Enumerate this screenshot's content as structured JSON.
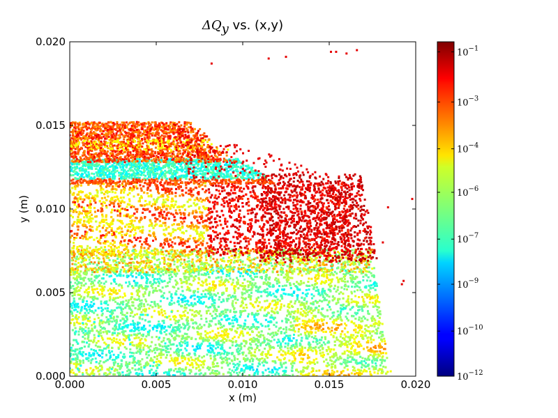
{
  "chart_data": {
    "type": "scatter",
    "title_math": "ΔQ",
    "title_sub": "y",
    "title_rest": " vs. (x,y)",
    "xlabel": "x (m)",
    "ylabel": "y (m)",
    "xlim": [
      0.0,
      0.02
    ],
    "ylim": [
      0.0,
      0.02
    ],
    "x_ticks": [
      0.0,
      0.005,
      0.01,
      0.015,
      0.02
    ],
    "x_tick_labels": [
      "0.000",
      "0.005",
      "0.010",
      "0.015",
      "0.020"
    ],
    "y_ticks": [
      0.0,
      0.005,
      0.01,
      0.015,
      0.02
    ],
    "y_tick_labels": [
      "0.000",
      "0.005",
      "0.010",
      "0.015",
      "0.020"
    ],
    "grid": false,
    "colormap": "jet",
    "colorbar": {
      "scale": "log",
      "ticks": [
        {
          "base": "10",
          "exp": "−1",
          "frac": 0.97
        },
        {
          "base": "10",
          "exp": "−3",
          "frac": 0.82
        },
        {
          "base": "10",
          "exp": "−4",
          "frac": 0.68
        },
        {
          "base": "10",
          "exp": "−6",
          "frac": 0.55
        },
        {
          "base": "10",
          "exp": "−7",
          "frac": 0.41
        },
        {
          "base": "10",
          "exp": "−9",
          "frac": 0.275
        },
        {
          "base": "10",
          "exp": "−10",
          "frac": 0.135
        },
        {
          "base": "10",
          "exp": "−12",
          "frac": 0.0
        }
      ]
    },
    "regions": [
      {
        "name": "core",
        "x": [
          0.0,
          0.0185
        ],
        "y": [
          0.0,
          0.0065
        ],
        "level_range": [
          0.35,
          0.75
        ]
      },
      {
        "name": "middle-band",
        "x": [
          0.0,
          0.017
        ],
        "y": [
          0.0075,
          0.0115
        ],
        "level_range": [
          0.65,
          0.95
        ]
      },
      {
        "name": "upper-cyan-band",
        "x": [
          0.0,
          0.011
        ],
        "y": [
          0.012,
          0.0128
        ],
        "level_range": [
          0.3,
          0.5
        ]
      },
      {
        "name": "upper-band",
        "x": [
          0.0,
          0.008
        ],
        "y": [
          0.013,
          0.0152
        ],
        "level_range": [
          0.7,
          0.98
        ]
      }
    ],
    "outliers": [
      {
        "x": 0.0082,
        "y": 0.0187
      },
      {
        "x": 0.0115,
        "y": 0.019
      },
      {
        "x": 0.0125,
        "y": 0.0191
      },
      {
        "x": 0.0151,
        "y": 0.0194
      },
      {
        "x": 0.0154,
        "y": 0.0194
      },
      {
        "x": 0.016,
        "y": 0.0193
      },
      {
        "x": 0.0166,
        "y": 0.0195
      },
      {
        "x": 0.0198,
        "y": 0.0106
      },
      {
        "x": 0.0193,
        "y": 0.0057
      },
      {
        "x": 0.0192,
        "y": 0.0055
      },
      {
        "x": 0.0181,
        "y": 0.008
      },
      {
        "x": 0.0184,
        "y": 0.0101
      }
    ]
  }
}
